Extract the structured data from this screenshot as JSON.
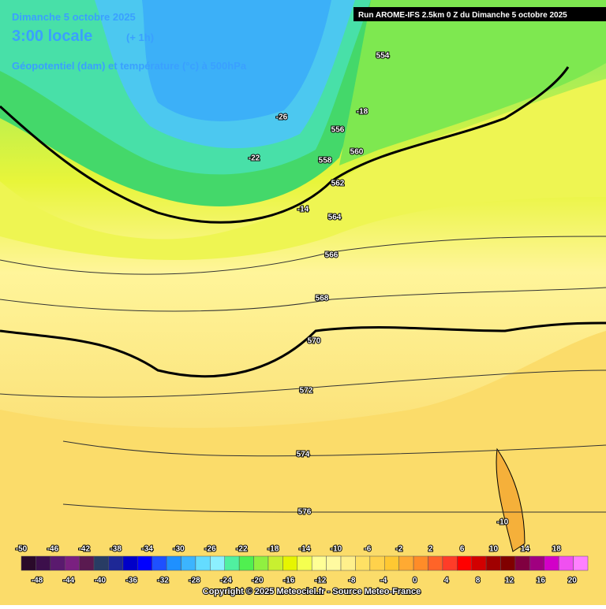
{
  "header": {
    "date": "Dimanche 5 octobre 2025",
    "time": "3:00 locale",
    "lead": "(+ 1h)",
    "field": "Géopotentiel (dam) et température (°c) à 500hPa",
    "run": "Run AROME-IFS 2.5km 0 Z du Dimanche 5 octobre 2025"
  },
  "contour_labels": [
    "554",
    "556",
    "558",
    "560",
    "562",
    "564",
    "566",
    "568",
    "570",
    "572",
    "574",
    "576",
    "-26",
    "-22",
    "-18",
    "-14",
    "-10"
  ],
  "colorbar": {
    "top_labels": [
      "-50",
      "-46",
      "-42",
      "-38",
      "-34",
      "-30",
      "-26",
      "-22",
      "-18",
      "-14",
      "-10",
      "-6",
      "-2",
      "2",
      "6",
      "10",
      "14",
      "18"
    ],
    "bottom_labels": [
      "-48",
      "-44",
      "-40",
      "-36",
      "-32",
      "-28",
      "-24",
      "-20",
      "-16",
      "-12",
      "-8",
      "-4",
      "0",
      "4",
      "8",
      "12",
      "16",
      "20"
    ],
    "colors": [
      "#2a0a2a",
      "#3c0f4b",
      "#5a1a6e",
      "#7a2080",
      "#5a1a50",
      "#283c64",
      "#1e2896",
      "#0000c8",
      "#0000ff",
      "#1e50ff",
      "#1e90ff",
      "#3cb4ff",
      "#64dcff",
      "#8cf0ff",
      "#50f0a0",
      "#50f050",
      "#90f040",
      "#c8f030",
      "#e6f500",
      "#f5ff50",
      "#ffff96",
      "#fffaa0",
      "#fff08c",
      "#ffe164",
      "#ffd24b",
      "#ffc832",
      "#ffaa32",
      "#ff8c28",
      "#ff6428",
      "#ff3c28",
      "#ff0000",
      "#d20000",
      "#a00000",
      "#800000",
      "#800040",
      "#a00080",
      "#d200c8",
      "#f050f0",
      "#ff80ff"
    ]
  },
  "footer": {
    "copyright": "Copyright © 2025 Meteociel.fr - Source Meteo-France"
  }
}
